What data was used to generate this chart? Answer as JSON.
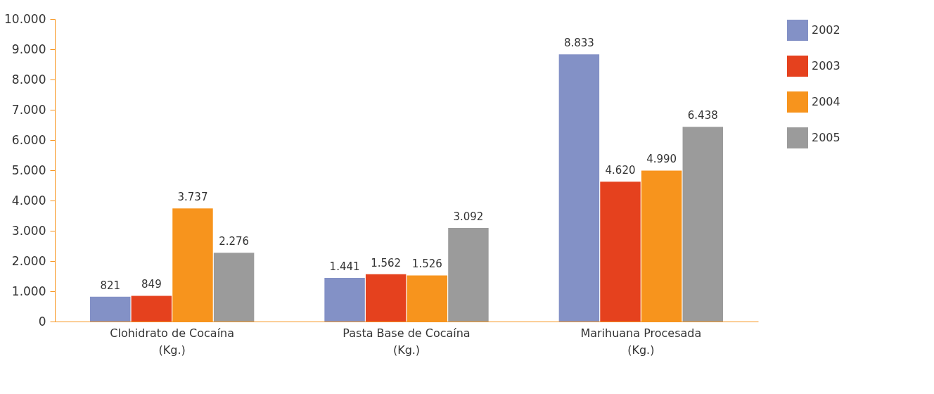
{
  "chart_data": {
    "type": "bar",
    "categories": [
      "Clohidrato de Cocaína\n(Kg.)",
      "Pasta Base de Cocaína\n(Kg.)",
      "Marihuana Procesada\n(Kg.)"
    ],
    "series": [
      {
        "name": "2002",
        "color": "#8391c6",
        "values": [
          821,
          1441,
          8833
        ],
        "value_labels": [
          "821",
          "1.441",
          "8.833"
        ]
      },
      {
        "name": "2003",
        "color": "#e5411e",
        "values": [
          849,
          1562,
          4620
        ],
        "value_labels": [
          "849",
          "1.562",
          "4.620"
        ]
      },
      {
        "name": "2004",
        "color": "#f7941d",
        "values": [
          3737,
          1526,
          4990
        ],
        "value_labels": [
          "3.737",
          "1.526",
          "4.990"
        ]
      },
      {
        "name": "2005",
        "color": "#9b9b9b",
        "values": [
          2276,
          3092,
          6438
        ],
        "value_labels": [
          "2.276",
          "3.092",
          "6.438"
        ]
      }
    ],
    "ylim": [
      0,
      10000
    ],
    "yticks": [
      {
        "value": 0,
        "label": "0"
      },
      {
        "value": 1000,
        "label": "1.000"
      },
      {
        "value": 2000,
        "label": "2.000"
      },
      {
        "value": 3000,
        "label": "3.000"
      },
      {
        "value": 4000,
        "label": "4.000"
      },
      {
        "value": 5000,
        "label": "5.000"
      },
      {
        "value": 6000,
        "label": "6.000"
      },
      {
        "value": 7000,
        "label": "7.000"
      },
      {
        "value": 8000,
        "label": "8.000"
      },
      {
        "value": 9000,
        "label": "9.000"
      },
      {
        "value": 10000,
        "label": "10.000"
      }
    ],
    "grid": false,
    "legend": "right"
  }
}
